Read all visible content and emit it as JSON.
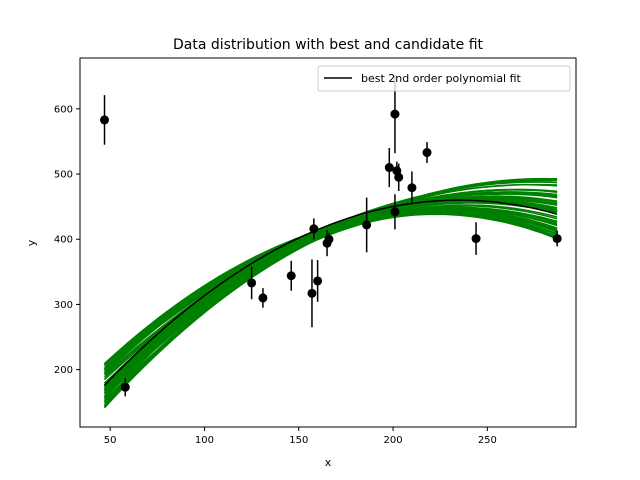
{
  "chart_data": {
    "type": "scatter",
    "title": "Data distribution with best and candidate fit",
    "xlabel": "x",
    "ylabel": "y",
    "xlim": [
      34,
      297
    ],
    "ylim": [
      112,
      678
    ],
    "xticks": [
      50,
      100,
      150,
      200,
      250
    ],
    "yticks": [
      200,
      300,
      400,
      500,
      600
    ],
    "grid": false,
    "legend": {
      "placement": "top-right",
      "entries": [
        "best 2nd order polynomial fit"
      ]
    },
    "colors": {
      "best_fit": "#000000",
      "candidates": "#008000",
      "points": "#000000"
    },
    "points": [
      {
        "x": 47,
        "y": 583,
        "err": 38
      },
      {
        "x": 58,
        "y": 173,
        "err": 14
      },
      {
        "x": 125,
        "y": 333,
        "err": 25
      },
      {
        "x": 131,
        "y": 310,
        "err": 15
      },
      {
        "x": 146,
        "y": 344,
        "err": 23
      },
      {
        "x": 157,
        "y": 317,
        "err": 52
      },
      {
        "x": 158,
        "y": 416,
        "err": 16
      },
      {
        "x": 160,
        "y": 336,
        "err": 32
      },
      {
        "x": 165,
        "y": 394,
        "err": 20
      },
      {
        "x": 166,
        "y": 400,
        "err": 10
      },
      {
        "x": 186,
        "y": 422,
        "err": 42
      },
      {
        "x": 198,
        "y": 510,
        "err": 30
      },
      {
        "x": 201,
        "y": 442,
        "err": 27
      },
      {
        "x": 201,
        "y": 592,
        "err": 60
      },
      {
        "x": 202,
        "y": 505,
        "err": 14
      },
      {
        "x": 203,
        "y": 495,
        "err": 21
      },
      {
        "x": 210,
        "y": 479,
        "err": 25
      },
      {
        "x": 218,
        "y": 533,
        "err": 16
      },
      {
        "x": 244,
        "y": 401,
        "err": 25
      },
      {
        "x": 287,
        "y": 401,
        "err": 12
      }
    ],
    "best_fit": {
      "name": "best 2nd order polynomial fit",
      "degree": 2,
      "x_range": [
        47,
        287
      ],
      "y_at_start": 176,
      "y_at_end": 441,
      "peak_x": 235,
      "peak_y": 460
    },
    "candidate_fits": {
      "count": 60,
      "x_range": [
        47,
        287
      ],
      "y_start_range": [
        140,
        210
      ],
      "y_end_range": [
        400,
        497
      ]
    }
  }
}
